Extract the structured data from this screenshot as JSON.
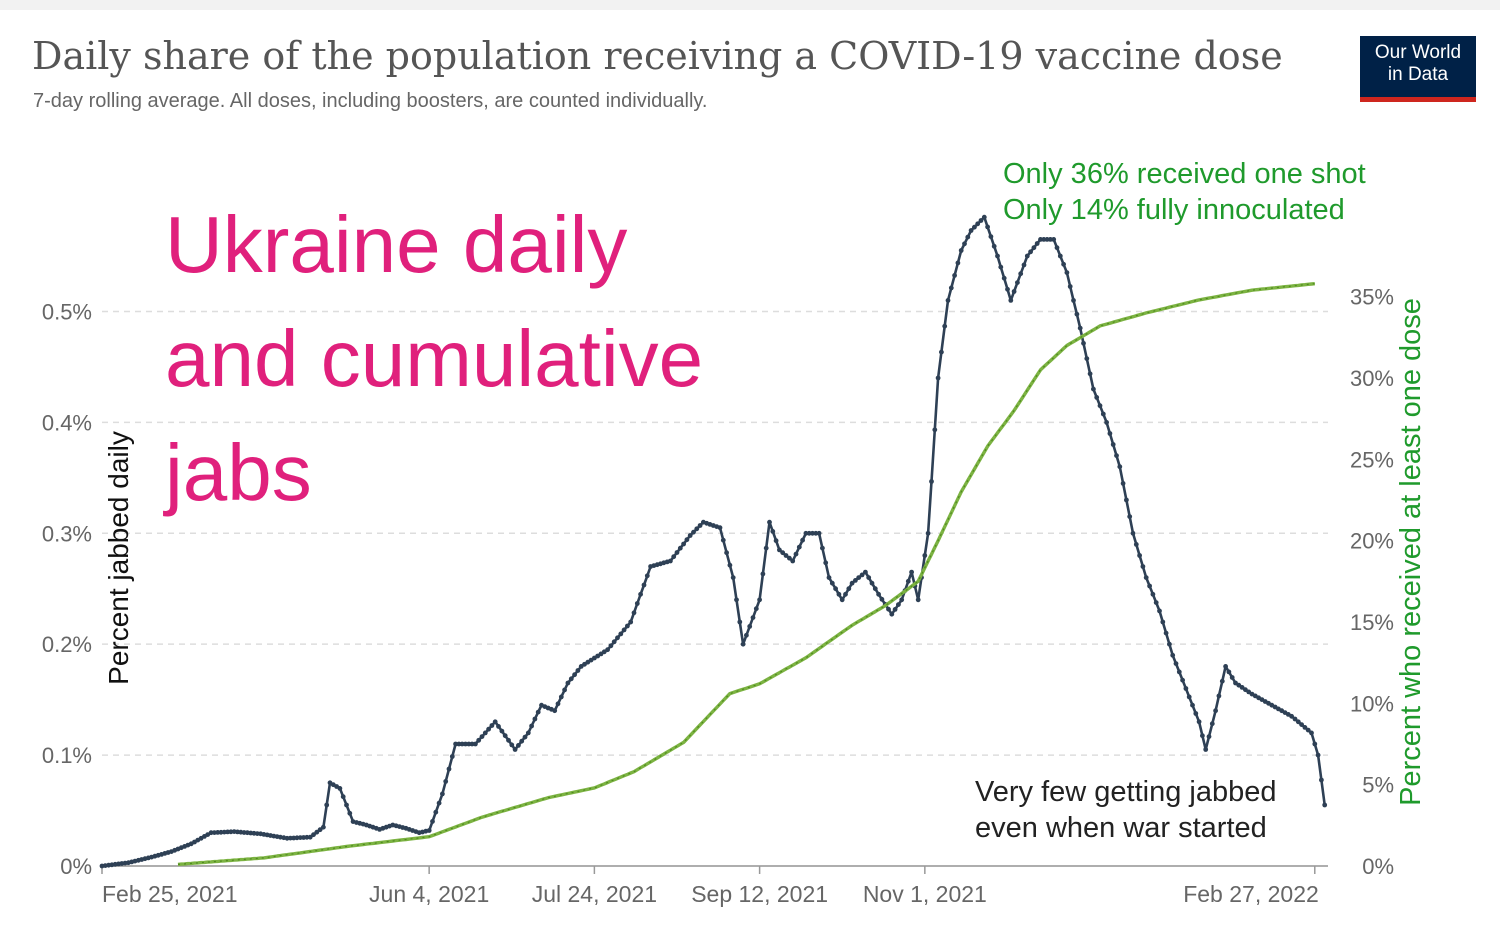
{
  "title": "Daily share of the population receiving a COVID-19 vaccine dose",
  "subtitle": "7-day rolling average. All doses, including boosters, are counted individually.",
  "logo": {
    "line1": "Our World",
    "line2": "in Data"
  },
  "overlay_title": [
    "Ukraine daily",
    "and cumulative",
    "jabs"
  ],
  "annotations": {
    "top_right": [
      "Only 36% received one shot",
      "Only 14% fully innoculated"
    ],
    "bottom_right": [
      "Very few getting jabbed",
      "even when war started"
    ]
  },
  "colors": {
    "daily_line": "#2e4055",
    "cumulative_line": "#7cb342",
    "overlay_pink": "#e0207c",
    "annotation_green": "#1f9a2c",
    "grid": "#dddddd",
    "axis_text": "#666666",
    "logo_bg": "#002147",
    "logo_bar": "#ce261e"
  },
  "chart_data": {
    "type": "line",
    "title": "Daily share of the population receiving a COVID-19 vaccine dose",
    "subtitle": "7-day rolling average. All doses, including boosters, are counted individually.",
    "xlabel": "",
    "ylabel": "Percent jabbed daily",
    "y2label": "Percent who received at least one dose",
    "x_ticks": [
      "Feb 25, 2021",
      "Jun 4, 2021",
      "Jul 24, 2021",
      "Sep 12, 2021",
      "Nov 1, 2021",
      "Feb 27, 2022"
    ],
    "x_tick_dates": [
      "2021-02-25",
      "2021-06-04",
      "2021-07-24",
      "2021-09-12",
      "2021-11-01",
      "2022-02-27"
    ],
    "xlim": [
      "2021-02-25",
      "2022-03-03"
    ],
    "ylim": [
      0,
      0.55
    ],
    "y_ticks": [
      0,
      0.1,
      0.2,
      0.3,
      0.4,
      0.5
    ],
    "y_tick_labels": [
      "0%",
      "0.1%",
      "0.2%",
      "0.3%",
      "0.4%",
      "0.5%"
    ],
    "y2lim": [
      0,
      37.5
    ],
    "y2_ticks": [
      0,
      5,
      10,
      15,
      20,
      25,
      30,
      35
    ],
    "y2_tick_labels": [
      "0%",
      "5%",
      "10%",
      "15%",
      "20%",
      "25%",
      "30%",
      "35%"
    ],
    "grid": "horizontal dashed",
    "series": [
      {
        "axis": "left",
        "color": "#2e4055",
        "points": [
          [
            "2021-02-25",
            0.0
          ],
          [
            "2021-03-05",
            0.003
          ],
          [
            "2021-03-12",
            0.008
          ],
          [
            "2021-03-18",
            0.013
          ],
          [
            "2021-03-24",
            0.02
          ],
          [
            "2021-03-30",
            0.03
          ],
          [
            "2021-04-06",
            0.031
          ],
          [
            "2021-04-14",
            0.029
          ],
          [
            "2021-04-22",
            0.025
          ],
          [
            "2021-04-29",
            0.026
          ],
          [
            "2021-05-03",
            0.035
          ],
          [
            "2021-05-05",
            0.075
          ],
          [
            "2021-05-08",
            0.07
          ],
          [
            "2021-05-12",
            0.04
          ],
          [
            "2021-05-16",
            0.037
          ],
          [
            "2021-05-20",
            0.033
          ],
          [
            "2021-05-24",
            0.037
          ],
          [
            "2021-05-28",
            0.034
          ],
          [
            "2021-06-01",
            0.03
          ],
          [
            "2021-06-04",
            0.032
          ],
          [
            "2021-06-08",
            0.065
          ],
          [
            "2021-06-12",
            0.11
          ],
          [
            "2021-06-18",
            0.11
          ],
          [
            "2021-06-24",
            0.13
          ],
          [
            "2021-06-30",
            0.105
          ],
          [
            "2021-07-04",
            0.12
          ],
          [
            "2021-07-08",
            0.145
          ],
          [
            "2021-07-12",
            0.14
          ],
          [
            "2021-07-16",
            0.165
          ],
          [
            "2021-07-20",
            0.18
          ],
          [
            "2021-07-28",
            0.195
          ],
          [
            "2021-08-04",
            0.22
          ],
          [
            "2021-08-10",
            0.27
          ],
          [
            "2021-08-16",
            0.275
          ],
          [
            "2021-08-22",
            0.298
          ],
          [
            "2021-08-26",
            0.31
          ],
          [
            "2021-08-31",
            0.305
          ],
          [
            "2021-09-04",
            0.26
          ],
          [
            "2021-09-07",
            0.2
          ],
          [
            "2021-09-12",
            0.24
          ],
          [
            "2021-09-15",
            0.31
          ],
          [
            "2021-09-18",
            0.285
          ],
          [
            "2021-09-22",
            0.275
          ],
          [
            "2021-09-26",
            0.3
          ],
          [
            "2021-09-30",
            0.3
          ],
          [
            "2021-10-03",
            0.26
          ],
          [
            "2021-10-07",
            0.24
          ],
          [
            "2021-10-10",
            0.255
          ],
          [
            "2021-10-14",
            0.265
          ],
          [
            "2021-10-18",
            0.245
          ],
          [
            "2021-10-22",
            0.227
          ],
          [
            "2021-10-25",
            0.24
          ],
          [
            "2021-10-28",
            0.265
          ],
          [
            "2021-10-30",
            0.24
          ],
          [
            "2021-11-02",
            0.3
          ],
          [
            "2021-11-05",
            0.44
          ],
          [
            "2021-11-08",
            0.51
          ],
          [
            "2021-11-12",
            0.555
          ],
          [
            "2021-11-15",
            0.573
          ],
          [
            "2021-11-19",
            0.585
          ],
          [
            "2021-11-23",
            0.55
          ],
          [
            "2021-11-27",
            0.51
          ],
          [
            "2021-12-02",
            0.55
          ],
          [
            "2021-12-06",
            0.565
          ],
          [
            "2021-12-10",
            0.565
          ],
          [
            "2021-12-14",
            0.535
          ],
          [
            "2021-12-18",
            0.485
          ],
          [
            "2021-12-22",
            0.43
          ],
          [
            "2021-12-26",
            0.4
          ],
          [
            "2021-12-30",
            0.36
          ],
          [
            "2022-01-03",
            0.3
          ],
          [
            "2022-01-07",
            0.26
          ],
          [
            "2022-01-11",
            0.23
          ],
          [
            "2022-01-15",
            0.19
          ],
          [
            "2022-01-19",
            0.16
          ],
          [
            "2022-01-23",
            0.13
          ],
          [
            "2022-01-25",
            0.105
          ],
          [
            "2022-01-28",
            0.14
          ],
          [
            "2022-01-31",
            0.18
          ],
          [
            "2022-02-03",
            0.165
          ],
          [
            "2022-02-08",
            0.155
          ],
          [
            "2022-02-14",
            0.145
          ],
          [
            "2022-02-20",
            0.135
          ],
          [
            "2022-02-24",
            0.125
          ],
          [
            "2022-02-26",
            0.12
          ],
          [
            "2022-02-28",
            0.1
          ],
          [
            "2022-03-02",
            0.055
          ]
        ]
      },
      {
        "axis": "right",
        "color": "#7cb342",
        "points": [
          [
            "2021-03-20",
            0.1
          ],
          [
            "2021-04-15",
            0.5
          ],
          [
            "2021-05-10",
            1.2
          ],
          [
            "2021-06-04",
            1.8
          ],
          [
            "2021-06-20",
            3.0
          ],
          [
            "2021-07-10",
            4.2
          ],
          [
            "2021-07-24",
            4.8
          ],
          [
            "2021-08-05",
            5.8
          ],
          [
            "2021-08-20",
            7.6
          ],
          [
            "2021-09-03",
            10.6
          ],
          [
            "2021-09-12",
            11.2
          ],
          [
            "2021-09-26",
            12.8
          ],
          [
            "2021-10-10",
            14.8
          ],
          [
            "2021-10-20",
            16.0
          ],
          [
            "2021-10-30",
            17.5
          ],
          [
            "2021-11-05",
            20.0
          ],
          [
            "2021-11-12",
            23.0
          ],
          [
            "2021-11-20",
            25.8
          ],
          [
            "2021-11-28",
            28.0
          ],
          [
            "2021-12-06",
            30.5
          ],
          [
            "2021-12-14",
            32.0
          ],
          [
            "2021-12-24",
            33.2
          ],
          [
            "2022-01-07",
            34.0
          ],
          [
            "2022-01-23",
            34.8
          ],
          [
            "2022-02-08",
            35.4
          ],
          [
            "2022-02-27",
            35.8
          ]
        ]
      }
    ]
  }
}
